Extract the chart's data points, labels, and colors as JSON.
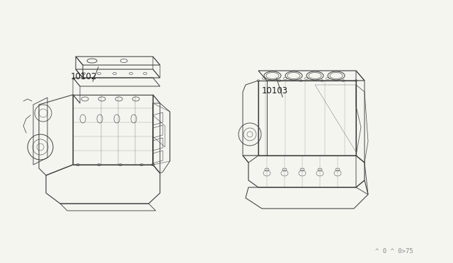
{
  "background_color": "#f5f5f0",
  "fig_width": 6.4,
  "fig_height": 3.72,
  "dpi": 100,
  "label_10102": "10102",
  "label_10103": "10103",
  "footnote": "^ 0 ^ 0>75",
  "line_color": "#404040",
  "label_color": "#1a1a1a",
  "footnote_color": "#888888",
  "footnote_fontsize": 6.5,
  "label_fontsize": 8.5,
  "lw": 0.7
}
